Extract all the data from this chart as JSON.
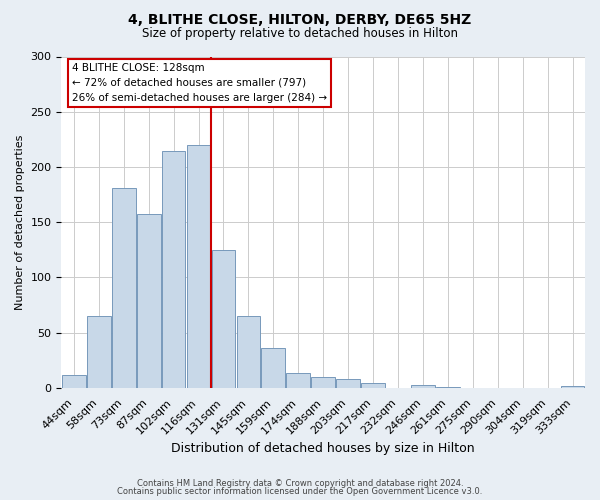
{
  "title": "4, BLITHE CLOSE, HILTON, DERBY, DE65 5HZ",
  "subtitle": "Size of property relative to detached houses in Hilton",
  "xlabel": "Distribution of detached houses by size in Hilton",
  "ylabel": "Number of detached properties",
  "bar_labels": [
    "44sqm",
    "58sqm",
    "73sqm",
    "87sqm",
    "102sqm",
    "116sqm",
    "131sqm",
    "145sqm",
    "159sqm",
    "174sqm",
    "188sqm",
    "203sqm",
    "217sqm",
    "232sqm",
    "246sqm",
    "261sqm",
    "275sqm",
    "290sqm",
    "304sqm",
    "319sqm",
    "333sqm"
  ],
  "bar_heights": [
    12,
    65,
    181,
    157,
    214,
    220,
    125,
    65,
    36,
    13,
    10,
    8,
    4,
    0,
    3,
    1,
    0,
    0,
    0,
    0,
    2
  ],
  "bar_color": "#c8d8e8",
  "bar_edge_color": "#7799bb",
  "vline_color": "#cc0000",
  "ylim": [
    0,
    300
  ],
  "yticks": [
    0,
    50,
    100,
    150,
    200,
    250,
    300
  ],
  "annotation_title": "4 BLITHE CLOSE: 128sqm",
  "annotation_line1": "← 72% of detached houses are smaller (797)",
  "annotation_line2": "26% of semi-detached houses are larger (284) →",
  "annotation_box_color": "#ffffff",
  "annotation_box_edge": "#cc0000",
  "footer1": "Contains HM Land Registry data © Crown copyright and database right 2024.",
  "footer2": "Contains public sector information licensed under the Open Government Licence v3.0.",
  "bg_color": "#e8eef4",
  "plot_bg_color": "#ffffff",
  "grid_color": "#cccccc"
}
